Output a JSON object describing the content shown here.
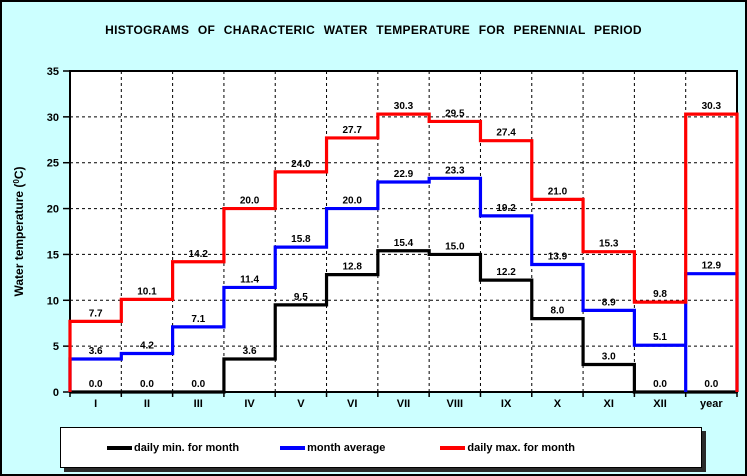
{
  "title": "HISTOGRAMS OF CHARACTERIC WATER TEMPERATURE FOR PERENNIAL PERIOD",
  "colors": {
    "background": "#ccffff",
    "plot_background": "#ffffff",
    "axis": "#000000",
    "grid": "#000000"
  },
  "chart_data": {
    "type": "step-histogram",
    "title": "HISTOGRAMS OF CHARACTERIC WATER TEMPERATURE FOR PERENNIAL PERIOD",
    "categories": [
      "I",
      "II",
      "III",
      "IV",
      "V",
      "VI",
      "VII",
      "VIII",
      "IX",
      "X",
      "XI",
      "XII",
      "year"
    ],
    "series": [
      {
        "name": "daily min. for month",
        "color": "#000000",
        "break_before_last": false,
        "values": [
          0.0,
          0.0,
          0.0,
          3.6,
          9.5,
          12.8,
          15.4,
          15.0,
          12.2,
          8.0,
          3.0,
          0.0,
          0.0
        ]
      },
      {
        "name": "month average",
        "color": "#0000ff",
        "break_before_last": true,
        "values": [
          3.6,
          4.2,
          7.1,
          11.4,
          15.8,
          20.0,
          22.9,
          23.3,
          19.2,
          13.9,
          8.9,
          5.1,
          12.9
        ]
      },
      {
        "name": "daily max. for month",
        "color": "#ff0000",
        "break_before_last": false,
        "values": [
          7.7,
          10.1,
          14.2,
          20.0,
          24.0,
          27.7,
          30.3,
          29.5,
          27.4,
          21.0,
          15.3,
          9.8,
          30.3
        ]
      }
    ],
    "xlabel": "",
    "ylabel": "Water temperature (⁰C)",
    "ylim": [
      0,
      35
    ],
    "ytick_step": 5,
    "yticks": [
      0,
      5,
      10,
      15,
      20,
      25,
      30,
      35
    ],
    "grid": true,
    "value_labels": true,
    "legend_position": "bottom"
  },
  "legend": {
    "items": [
      {
        "label": "daily min. for month",
        "color": "#000000"
      },
      {
        "label": "month average",
        "color": "#0000ff"
      },
      {
        "label": "daily max. for month",
        "color": "#ff0000"
      }
    ]
  }
}
